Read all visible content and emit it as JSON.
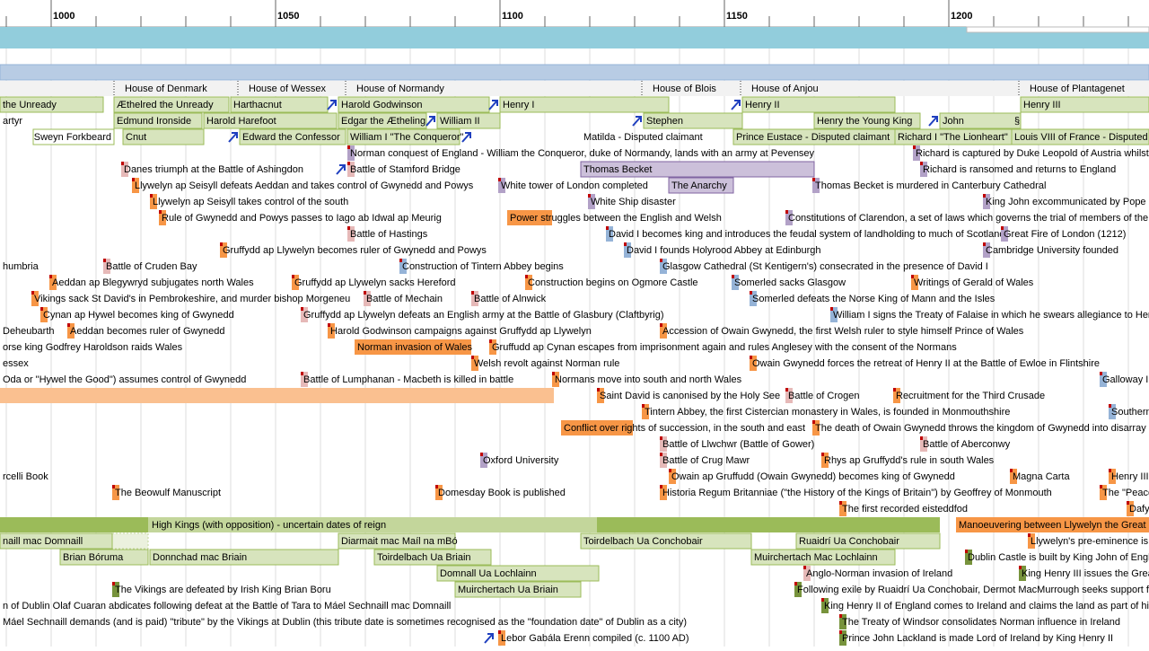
{
  "axis": {
    "ticks": [
      "1000",
      "1050",
      "1100",
      "1150",
      "1200"
    ]
  },
  "items": [
    {
      "label": "House of Denmark"
    },
    {
      "label": "House of Wessex"
    },
    {
      "label": "House of Normandy"
    },
    {
      "label": "House of Blois"
    },
    {
      "label": "House of Anjou"
    },
    {
      "label": "House of Plantagenet"
    },
    {
      "label": "the Unready"
    },
    {
      "label": "Æthelred the Unready"
    },
    {
      "label": "Harthacnut"
    },
    {
      "label": "Harold Godwinson"
    },
    {
      "label": "Henry I"
    },
    {
      "label": "Henry II"
    },
    {
      "label": "Henry III"
    },
    {
      "label": "artyr"
    },
    {
      "label": "Edmund Ironside"
    },
    {
      "label": "Harold Harefoot"
    },
    {
      "label": "Edgar the Ætheling"
    },
    {
      "label": "William II"
    },
    {
      "label": "Stephen"
    },
    {
      "label": "Henry the Young King"
    },
    {
      "label": "John"
    },
    {
      "label": "§"
    },
    {
      "label": "Sweyn Forkbeard"
    },
    {
      "label": "Cnut"
    },
    {
      "label": "Edward the Confessor"
    },
    {
      "label": "William I \"The Conqueror\""
    },
    {
      "label": "Matilda - Disputed claimant"
    },
    {
      "label": "Prince Eustace - Disputed claimant"
    },
    {
      "label": "Richard I \"The Lionheart\""
    },
    {
      "label": "Louis VIII of France - Disputed c"
    },
    {
      "label": "Norman conquest of England - William the Conqueror, duke of Normandy, lands with an army at Pevensey"
    },
    {
      "label": "Richard is captured by Duke Leopold of Austria whilst"
    },
    {
      "label": "Danes triumph at the Battle of Ashingdon"
    },
    {
      "label": "Battle of Stamford Bridge"
    },
    {
      "label": "Thomas Becket"
    },
    {
      "label": "Richard is ransomed and returns to England"
    },
    {
      "label": "Llywelyn ap Seisyll defeats Aeddan and takes control of Gwynedd and Powys"
    },
    {
      "label": "White tower of London completed"
    },
    {
      "label": "The Anarchy"
    },
    {
      "label": "Thomas Becket is murdered in Canterbury Cathedral"
    },
    {
      "label": "Llywelyn ap Seisyll takes control of the south"
    },
    {
      "label": "White Ship disaster"
    },
    {
      "label": "King John excommunicated by Pope In"
    },
    {
      "label": "Rule of Gwynedd and Powys passes to Iago ab Idwal ap Meurig"
    },
    {
      "label": "Power struggles between the English and Welsh"
    },
    {
      "label": "Constitutions of Clarendon, a set of laws which governs the trial of members of the"
    },
    {
      "label": "Battle of Hastings"
    },
    {
      "label": "David I becomes king and introduces the feudal system of landholding to much of Scotland"
    },
    {
      "label": "Great Fire of London (1212)"
    },
    {
      "label": "Gruffydd ap Llywelyn becomes ruler of Gwynedd and Powys"
    },
    {
      "label": "David I founds Holyrood Abbey at Edinburgh"
    },
    {
      "label": "Cambridge University founded"
    },
    {
      "label": "humbria"
    },
    {
      "label": "Battle of Cruden Bay"
    },
    {
      "label": "Construction of Tintern Abbey begins"
    },
    {
      "label": "Glasgow Cathedral (St Kentigern's) consecrated in the presence of David I"
    },
    {
      "label": "Aeddan ap Blegywryd subjugates north Wales"
    },
    {
      "label": "Gruffydd ap Llywelyn sacks Hereford"
    },
    {
      "label": "Construction begins on Ogmore Castle"
    },
    {
      "label": "Somerled sacks Glasgow"
    },
    {
      "label": "Writings of Gerald of Wales"
    },
    {
      "label": "Vikings sack St David's in Pembrokeshire, and murder bishop Morgeneu"
    },
    {
      "label": "Battle of Mechain"
    },
    {
      "label": "Battle of Alnwick"
    },
    {
      "label": "Somerled defeats the Norse King of Mann and the Isles"
    },
    {
      "label": "Cynan ap Hywel becomes king of Gwynedd"
    },
    {
      "label": "Gruffydd ap Llywelyn defeats an English army at the Battle of Glasbury (Claftbyrig)"
    },
    {
      "label": "William I signs the Treaty of Falaise in which he swears allegiance to Her"
    },
    {
      "label": "Deheubarth"
    },
    {
      "label": "Aeddan becomes ruler of Gwynedd"
    },
    {
      "label": "Harold Godwinson campaigns against Gruffydd ap Llywelyn"
    },
    {
      "label": "Accession of Owain Gwynedd, the first Welsh ruler to style himself Prince of Wales"
    },
    {
      "label": "orse king Godfrey Haroldson raids Wales"
    },
    {
      "label": "Norman invasion of Wales"
    },
    {
      "label": "Gruffudd ap Cynan escapes from imprisonment again and rules Anglesey with the consent of the Normans"
    },
    {
      "label": "essex"
    },
    {
      "label": "Welsh revolt against Norman rule"
    },
    {
      "label": "Owain Gwynedd forces the retreat of Henry II at the Battle of Ewloe in Flintshire"
    },
    {
      "label": "Oda or \"Hywel the Good\") assumes control of Gwynedd"
    },
    {
      "label": "Battle of Lumphanan - Macbeth is killed in battle"
    },
    {
      "label": "Normans move into south and north Wales"
    },
    {
      "label": "Galloway I"
    },
    {
      "label": "Saint David is canonised by the Holy See"
    },
    {
      "label": "Battle of Crogen"
    },
    {
      "label": "Recruitment for the Third Crusade"
    },
    {
      "label": "Tintern Abbey, the first Cistercian monastery in Wales, is founded in Monmouthshire"
    },
    {
      "label": "Southern"
    },
    {
      "label": "Conflict over rights of succession, in the  south and east"
    },
    {
      "label": "The death of Owain Gwynedd throws the kingdom of Gwynedd into disarray"
    },
    {
      "label": "Battle of Llwchwr (Battle of Gower)"
    },
    {
      "label": "Battle of Aberconwy"
    },
    {
      "label": "Oxford University"
    },
    {
      "label": "Battle of Crug Mawr"
    },
    {
      "label": "Rhys ap Gruffydd's rule in south Wales"
    },
    {
      "label": "rcelli Book"
    },
    {
      "label": "Owain ap Gruffudd (Owain Gwynedd) becomes king of Gwynedd"
    },
    {
      "label": "Magna Carta"
    },
    {
      "label": "Henry III"
    },
    {
      "label": "The Beowulf Manuscript"
    },
    {
      "label": "Domesday Book is published"
    },
    {
      "label": "Historia Regum Britanniae (\"the History of the Kings of Britain\") by Geoffrey of Monmouth"
    },
    {
      "label": "The \"Peace"
    },
    {
      "label": "The first recorded eisteddfod"
    },
    {
      "label": "Dafy"
    },
    {
      "label": "High Kings (with opposition) - uncertain dates of reign"
    },
    {
      "label": "Manoeuvering between Llywelyn the Great"
    },
    {
      "label": "naill mac Domnaill"
    },
    {
      "label": "Diarmait mac Maíl na mBó"
    },
    {
      "label": "Toirdelbach Ua Conchobair"
    },
    {
      "label": "Ruaidrí Ua Conchobair"
    },
    {
      "label": "Llywelyn's pre-eminence is"
    },
    {
      "label": "Brian Bóruma"
    },
    {
      "label": "Donnchad mac Briain"
    },
    {
      "label": "Toirdelbach Ua Briain"
    },
    {
      "label": "Muirchertach Mac Lochlainn"
    },
    {
      "label": "Dublin Castle is built by King John of Engla"
    },
    {
      "label": "Domnall Ua Lochlainn"
    },
    {
      "label": "Anglo-Norman invasion of Ireland"
    },
    {
      "label": "King Henry III issues the Grea"
    },
    {
      "label": "The Vikings are defeated by Irish King Brian Boru"
    },
    {
      "label": "Muirchertach Ua Briain"
    },
    {
      "label": "Following exile by Ruaidrí Ua Conchobair, Dermot MacMurrough seeks support fro"
    },
    {
      "label": "n of Dublin Olaf Cuaran abdicates following defeat at the Battle of Tara to Máel Sechnaill mac Domnaill"
    },
    {
      "label": "King Henry II of England comes to Ireland and claims the land as part of his"
    },
    {
      "label": "Máel Sechnaill demands (and is paid) \"tribute\" by the Vikings at Dublin (this tribute date is sometimes recognised as the \"foundation date\" of Dublin as a city)"
    },
    {
      "label": "The Treaty of Windsor consolidates Norman influence in Ireland"
    },
    {
      "label": "Lebor Gabála Erenn compiled (c. 1100 AD)"
    },
    {
      "label": "Prince John Lackland is made Lord of Ireland by King Henry II"
    }
  ]
}
